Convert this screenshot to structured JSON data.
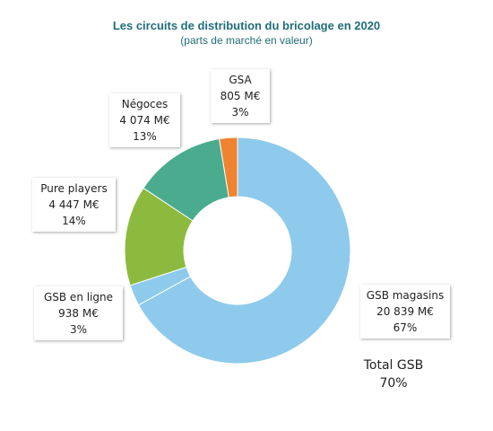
{
  "chart_data": {
    "type": "pie",
    "variant": "donut",
    "title": "Les circuits de distribution du bricolage en 2020",
    "subtitle": "(parts de marché en valeur)",
    "slices": [
      {
        "key": "gsb_magasins",
        "name": "GSB magasins",
        "value_label": "20 839  M€",
        "value": 20839,
        "share": 67,
        "share_label": "67%",
        "color": "#8ecaec"
      },
      {
        "key": "gsb_en_ligne",
        "name": "GSB en ligne",
        "value_label": "938  M€",
        "value": 938,
        "share": 3,
        "share_label": "3%",
        "color": "#8ecaec"
      },
      {
        "key": "pure_players",
        "name": "Pure players",
        "value_label": "4 447  M€",
        "value": 4447,
        "share": 14,
        "share_label": "14%",
        "color": "#8cba3f"
      },
      {
        "key": "negoces",
        "name": "Négoces",
        "value_label": "4 074  M€",
        "value": 4074,
        "share": 13,
        "share_label": "13%",
        "color": "#4aab8e"
      },
      {
        "key": "gsa",
        "name": "GSA",
        "value_label": "805  M€",
        "value": 805,
        "share": 3,
        "share_label": "3%",
        "color": "#f08330"
      }
    ],
    "annotation": {
      "label": "Total GSB",
      "value": "70%"
    }
  }
}
